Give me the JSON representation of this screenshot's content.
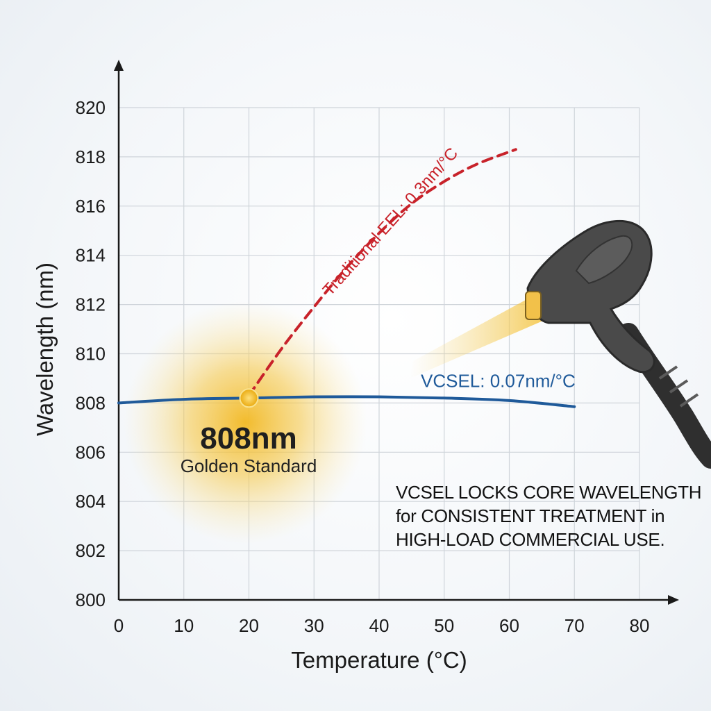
{
  "chart_data": {
    "type": "line",
    "xlabel": "Temperature (°C)",
    "ylabel": "Wavelength (nm)",
    "xlim": [
      0,
      80
    ],
    "ylim": [
      800,
      820
    ],
    "x_ticks": [
      "0",
      "10",
      "20",
      "30",
      "40",
      "50",
      "60",
      "70",
      "80"
    ],
    "y_ticks": [
      "800",
      "802",
      "804",
      "806",
      "808",
      "810",
      "812",
      "814",
      "816",
      "818",
      "820"
    ],
    "grid": true,
    "series": [
      {
        "name": "Traditional EEL: 0.3nm/°C",
        "label": "Traditional EEL: 0.3nm/°C",
        "color": "#c8222a",
        "style": "dashed",
        "x": [
          20,
          25,
          30,
          35,
          40,
          45,
          50,
          55,
          61
        ],
        "y": [
          808.3,
          810.2,
          811.9,
          813.5,
          814.9,
          816.1,
          817.0,
          817.7,
          818.3
        ]
      },
      {
        "name": "VCSEL: 0.07nm/°C",
        "label": "VCSEL: 0.07nm/°C",
        "color": "#1f5a9a",
        "style": "solid",
        "x": [
          0,
          10,
          20,
          30,
          40,
          50,
          60,
          70
        ],
        "y": [
          808.0,
          808.15,
          808.2,
          808.25,
          808.25,
          808.2,
          808.1,
          807.85
        ]
      }
    ],
    "highlight": {
      "x": 20,
      "y": 808.2,
      "title": "808nm",
      "subtitle": "Golden Standard",
      "color": "#f2b822"
    },
    "callout_lines": [
      "VCSEL LOCKS CORE WAVELENGTH",
      "for CONSISTENT TREATMENT in",
      "HIGH-LOAD COMMERCIAL USE."
    ]
  },
  "colors": {
    "axis": "#1a1a1a",
    "grid": "#cfd4da",
    "device_body": "#4a4a4a",
    "beam": "#f5c542"
  },
  "icons": {
    "device": "laser-handpiece-icon"
  }
}
